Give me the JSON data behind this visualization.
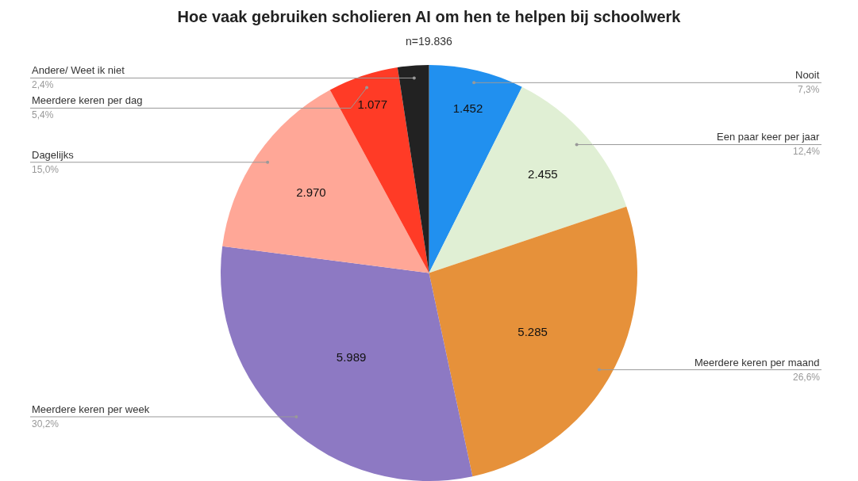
{
  "chart_data": {
    "type": "pie",
    "title": "Hoe vaak gebruiken scholieren AI om hen te helpen bij schoolwerk",
    "subtitle": "n=19.836",
    "categories": [
      "Nooit",
      "Een paar keer per jaar",
      "Meerdere keren per maand",
      "Meerdere keren per week",
      "Dagelijks",
      "Meerdere keren per dag",
      "Andere/ Weet ik niet"
    ],
    "values": [
      1452,
      2455,
      5285,
      5989,
      2970,
      1077,
      476
    ],
    "value_labels": [
      "1.452",
      "2.455",
      "5.285",
      "5.989",
      "2.970",
      "1.077",
      null
    ],
    "colors": [
      "#2190ef",
      "#e0efd4",
      "#e6913a",
      "#8d79c3",
      "#ffa797",
      "#ff3b26",
      "#222222"
    ],
    "annotations": [
      "7,3%",
      "12,4%",
      "26,6%",
      "30,2%",
      "15,0%",
      "5,4%",
      "2,4%"
    ],
    "legend": false
  }
}
